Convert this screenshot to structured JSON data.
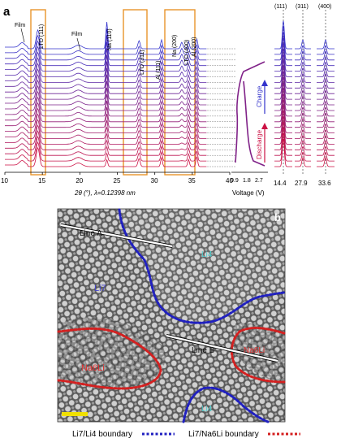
{
  "panel_a": {
    "panel_label": "a",
    "peak_labels": {
      "film_left": "Film",
      "film_mid": "Film",
      "lto111": "LTO (111)",
      "na110": "Na (110)",
      "lto311": "LTO (311)",
      "al111": "Al (111)",
      "na200": "Na (200)",
      "lto400": "LTO (400)",
      "al200": "Al (200)"
    },
    "x_ticks": [
      "10",
      "15",
      "20",
      "25",
      "30",
      "35",
      "40"
    ],
    "xlabel": "2θ (°), λ=0.12398 nm",
    "voltage_ticks": [
      "0.9",
      "1.8",
      "2.7"
    ],
    "voltage_label": "Voltage (V)",
    "charge_label": "Charge",
    "discharge_label": "Discharge",
    "zoom_top_labels": [
      "(111)",
      "(311)",
      "(400)"
    ],
    "zoom_ticks": [
      "14.4",
      "27.9",
      "33.6"
    ],
    "colors": {
      "charge": "#3333cc",
      "discharge": "#cc1144",
      "box": "#e8952a"
    },
    "chart_data": {
      "type": "line",
      "title": "",
      "xlabel": "2θ (°), λ=0.12398 nm",
      "xlim": [
        10,
        40
      ],
      "series_count": 22,
      "peaks_2theta": [
        12.3,
        14.4,
        19.8,
        23.6,
        27.9,
        30.9,
        33.6,
        34.5,
        35.6
      ]
    }
  },
  "panel_b": {
    "panel_label": "b",
    "labels": {
      "line_a": "Line A",
      "line_b": "Line B",
      "li4_top": "Li4",
      "li7": "Li7",
      "na6li_right": "Na6Li",
      "na6li_left": "Na6Li",
      "li4_bottom": "Li4"
    },
    "legend": {
      "li7_li4": "Li7/Li4 boundary",
      "li7_na6li": "Li7/Na6Li boundary"
    },
    "colors": {
      "li_boundary": "#2020c0",
      "na_boundary": "#d42020",
      "scale_bar": "#f0e000"
    }
  }
}
